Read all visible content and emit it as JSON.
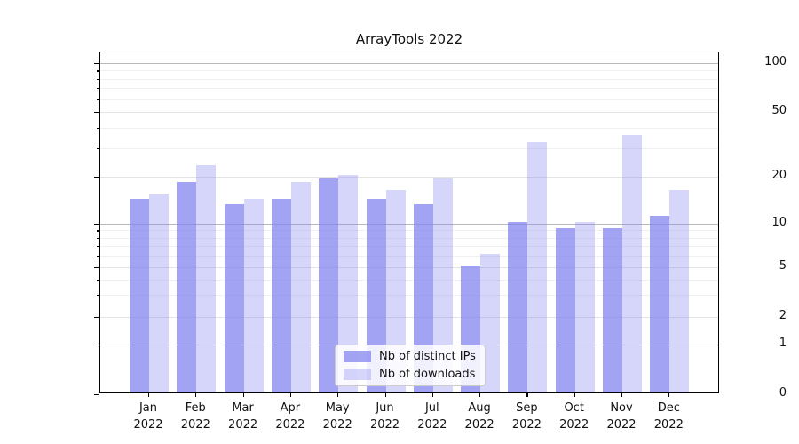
{
  "chart_data": {
    "type": "bar",
    "title": "ArrayTools 2022",
    "categories": [
      "Jan",
      "Feb",
      "Mar",
      "Apr",
      "May",
      "Jun",
      "Jul",
      "Aug",
      "Sep",
      "Oct",
      "Nov",
      "Dec"
    ],
    "category_year": "2022",
    "series": [
      {
        "name": "Nb of distinct IPs",
        "color": "rgba(128,128,238,0.72)",
        "values": [
          14,
          18,
          13,
          14,
          19,
          14,
          13,
          5,
          10,
          9,
          9,
          11
        ]
      },
      {
        "name": "Nb of downloads",
        "color": "rgba(128,128,238,0.32)",
        "values": [
          15,
          23,
          14,
          18,
          20,
          16,
          19,
          6,
          32,
          10,
          35,
          16
        ]
      }
    ],
    "yticks": [
      0,
      1,
      2,
      5,
      10,
      20,
      50,
      100
    ],
    "yminorticks": [
      3,
      4,
      6,
      7,
      8,
      9,
      30,
      40,
      60,
      70,
      80,
      90
    ],
    "yscale": "log-like (linear 0-1, log above 1)",
    "ylim": [
      0,
      120
    ],
    "xlabel": "",
    "ylabel": "",
    "grid": true,
    "legend_position": "lower-center-inside"
  },
  "colors": {
    "grid_major": "#b9b9b9",
    "grid_light": "#e4e4e4",
    "frame": "#000000"
  }
}
